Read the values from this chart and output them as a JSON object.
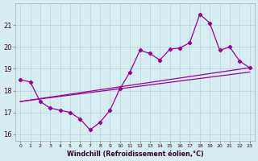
{
  "xlabel": "Windchill (Refroidissement éolien,°C)",
  "background_color": "#d6eef2",
  "grid_color": "#b8d8e0",
  "line_color": "#990099",
  "zigzag_x": [
    0,
    1,
    2,
    3,
    4,
    5,
    6,
    7,
    8,
    9,
    10,
    11,
    12,
    13,
    14,
    15,
    16,
    17,
    18,
    19,
    20,
    21,
    22,
    23
  ],
  "zigzag_y": [
    18.5,
    18.4,
    17.5,
    17.2,
    17.1,
    17.0,
    16.7,
    16.2,
    16.55,
    17.1,
    18.1,
    18.85,
    19.85,
    19.7,
    19.4,
    19.9,
    19.95,
    20.2,
    21.5,
    21.1,
    19.85,
    20.0,
    19.35,
    19.05
  ],
  "trend1_x": [
    0,
    23
  ],
  "trend1_y": [
    17.5,
    19.05
  ],
  "trend2_x": [
    0,
    23
  ],
  "trend2_y": [
    17.5,
    18.85
  ],
  "ylim": [
    15.7,
    22.0
  ],
  "xlim": [
    -0.5,
    23.5
  ],
  "yticks": [
    16,
    17,
    18,
    19,
    20,
    21
  ],
  "xticks": [
    0,
    1,
    2,
    3,
    4,
    5,
    6,
    7,
    8,
    9,
    10,
    11,
    12,
    13,
    14,
    15,
    16,
    17,
    18,
    19,
    20,
    21,
    22,
    23
  ]
}
